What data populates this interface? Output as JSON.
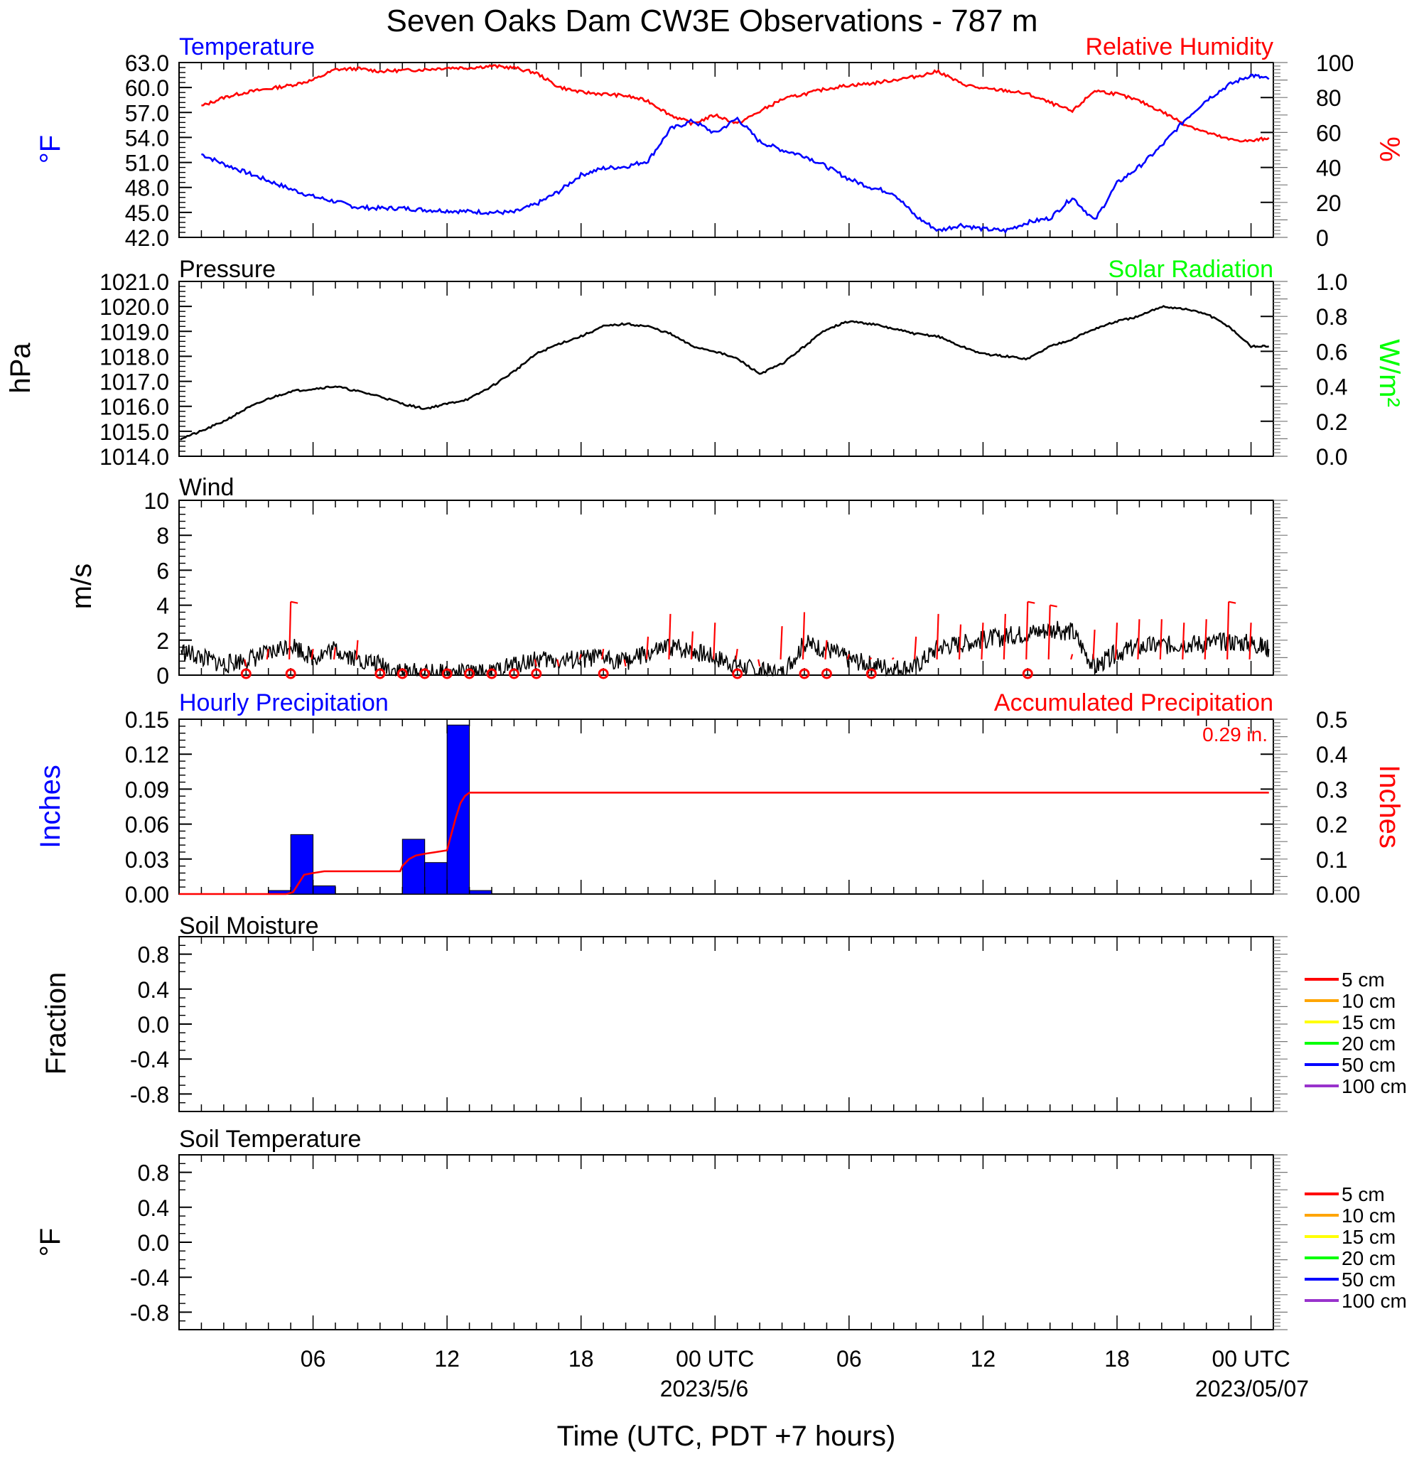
{
  "figure": {
    "title": "Seven Oaks Dam CW3E Observations - 787 m",
    "x_axis_label": "Time (UTC, PDT +7 hours)",
    "x_ticks": [
      "06",
      "12",
      "18",
      "00 UTC",
      "06",
      "12",
      "18",
      "00 UTC"
    ],
    "x_dates": [
      "2023/5/6",
      "2023/05/07"
    ]
  },
  "colors": {
    "temperature": "#0000ff",
    "humidity": "#ff0000",
    "pressure": "#000000",
    "solar": "#00ff00",
    "wind": "#000000",
    "wind_barbs": "#ff0000",
    "hourly_precip": "#0000ff",
    "accum_precip": "#ff0000",
    "soil_depths": [
      "#ff0000",
      "#ffa500",
      "#ffff00",
      "#00ff00",
      "#0000ff",
      "#9933cc"
    ]
  },
  "chart_data": [
    {
      "type": "line",
      "left_title": "Temperature",
      "right_title": "Relative Humidity",
      "ylabel_left": "°F",
      "ylabel_right": "%",
      "ylim_left": [
        42.0,
        63.0
      ],
      "ylim_right": [
        0,
        100
      ],
      "yticks_left": [
        "42.0",
        "45.0",
        "48.0",
        "51.0",
        "54.0",
        "57.0",
        "60.0",
        "63.0"
      ],
      "yticks_right": [
        "0",
        "20",
        "40",
        "60",
        "80",
        "100"
      ],
      "x_hours": [
        1,
        2,
        3,
        4,
        5,
        6,
        7,
        8,
        9,
        10,
        11,
        12,
        13,
        14,
        15,
        16,
        17,
        18,
        19,
        20,
        21,
        22,
        23,
        24,
        25,
        26,
        27,
        28,
        29,
        30,
        31,
        32,
        33,
        34,
        35,
        36,
        37,
        38,
        39,
        40,
        41,
        42,
        43,
        44,
        45,
        46,
        47,
        48,
        48.8
      ],
      "series": [
        {
          "name": "Temperature",
          "axis": "left",
          "values": [
            52.0,
            50.8,
            49.8,
            48.8,
            47.8,
            46.9,
            46.3,
            45.6,
            45.5,
            45.5,
            45.3,
            45.2,
            45.1,
            45.0,
            45.0,
            46.0,
            47.5,
            49.5,
            50.3,
            50.5,
            51.2,
            55.0,
            56.0,
            54.5,
            56.3,
            53.5,
            52.5,
            51.8,
            50.5,
            49.0,
            48.0,
            47.3,
            44.5,
            42.8,
            43.5,
            43.0,
            42.8,
            43.8,
            44.3,
            46.8,
            44.0,
            48.5,
            50.5,
            53.0,
            56.0,
            58.5,
            60.3,
            61.5,
            61.0
          ]
        },
        {
          "name": "Relative Humidity",
          "axis": "right",
          "values": [
            75,
            80,
            83,
            85,
            87,
            90,
            96,
            96.5,
            95,
            95.5,
            96,
            97,
            97,
            98,
            97,
            94,
            86,
            83,
            82,
            81,
            78,
            70,
            65,
            70,
            65,
            72,
            79,
            82,
            85,
            87,
            88,
            90,
            92,
            95,
            88,
            85,
            84,
            82,
            77,
            72,
            84,
            82,
            78,
            72,
            65,
            60,
            56,
            55,
            57
          ]
        }
      ]
    },
    {
      "type": "line",
      "left_title": "Pressure",
      "right_title": "Solar Radiation",
      "ylabel_left": "hPa",
      "ylabel_right": "W/m²",
      "ylim_left": [
        1014.0,
        1021.0
      ],
      "ylim_right": [
        0.0,
        1.0
      ],
      "yticks_left": [
        "1014.0",
        "1015.0",
        "1016.0",
        "1017.0",
        "1018.0",
        "1019.0",
        "1020.0",
        "1021.0"
      ],
      "yticks_right": [
        "0.0",
        "0.2",
        "0.4",
        "0.6",
        "0.8",
        "1.0"
      ],
      "x_hours": [
        0.05,
        1,
        2,
        3,
        4,
        5,
        6,
        7,
        8,
        9,
        10,
        11,
        12,
        13,
        14,
        15,
        16,
        17,
        18,
        19,
        20,
        21,
        22,
        23,
        24,
        25,
        26,
        27,
        28,
        29,
        30,
        31,
        32,
        33,
        34,
        35,
        36,
        37,
        38,
        39,
        40,
        41,
        42,
        43,
        44,
        45,
        46,
        47,
        48,
        48.8
      ],
      "series": [
        {
          "name": "Pressure",
          "axis": "left",
          "values": [
            1014.7,
            1015.0,
            1015.4,
            1015.9,
            1016.3,
            1016.6,
            1016.7,
            1016.8,
            1016.6,
            1016.4,
            1016.1,
            1015.9,
            1016.1,
            1016.3,
            1016.8,
            1017.4,
            1018.1,
            1018.5,
            1018.8,
            1019.2,
            1019.3,
            1019.2,
            1018.9,
            1018.4,
            1018.2,
            1017.9,
            1017.3,
            1017.7,
            1018.4,
            1019.1,
            1019.4,
            1019.3,
            1019.1,
            1018.9,
            1018.8,
            1018.4,
            1018.1,
            1018.0,
            1017.9,
            1018.4,
            1018.7,
            1019.1,
            1019.4,
            1019.6,
            1020.0,
            1019.9,
            1019.7,
            1019.2,
            1018.4,
            1018.4
          ]
        },
        {
          "name": "Solar Radiation",
          "axis": "right",
          "values": []
        }
      ]
    },
    {
      "type": "line",
      "left_title": "Wind",
      "ylabel_left": "m/s",
      "ylim_left": [
        0,
        10
      ],
      "yticks_left": [
        "0",
        "2",
        "4",
        "6",
        "8",
        "10"
      ],
      "x_hours": [
        0.1,
        1,
        2,
        3,
        4,
        5,
        6,
        7,
        8,
        9,
        10,
        11,
        12,
        13,
        14,
        15,
        16,
        17,
        18,
        19,
        20,
        21,
        22,
        23,
        24,
        25,
        26,
        27,
        28,
        29,
        30,
        31,
        32,
        33,
        34,
        35,
        36,
        37,
        38,
        39,
        40,
        41,
        42,
        43,
        44,
        45,
        46,
        47,
        48,
        48.8
      ],
      "series": [
        {
          "name": "Wind",
          "values": [
            1.4,
            1.0,
            0.6,
            0.9,
            1.2,
            1.8,
            1.0,
            1.5,
            0.9,
            0.6,
            0.2,
            0.1,
            0.1,
            0.1,
            0.1,
            0.6,
            0.9,
            0.8,
            0.9,
            1.0,
            0.8,
            1.2,
            1.6,
            1.4,
            1.0,
            0.6,
            0.2,
            0.1,
            1.8,
            1.5,
            0.9,
            0.6,
            0.4,
            0.5,
            1.6,
            1.8,
            2.0,
            2.2,
            2.4,
            2.6,
            2.5,
            0.4,
            1.3,
            1.6,
            1.7,
            1.8,
            1.8,
            1.9,
            1.8,
            1.5
          ]
        }
      ],
      "barb_hours": [
        3,
        4,
        5,
        6,
        7,
        8,
        10,
        11,
        12,
        13,
        14,
        15,
        16,
        17,
        18,
        19,
        20,
        21,
        22,
        23,
        24,
        25,
        26,
        27,
        28,
        29,
        30,
        31,
        32,
        33,
        34,
        35,
        36,
        37,
        38,
        39,
        40,
        41,
        42,
        43,
        44,
        45,
        46,
        47,
        48
      ],
      "barb_speeds": [
        0.5,
        1.5,
        4.2,
        1.5,
        1.6,
        2.0,
        0,
        0,
        0,
        0,
        0,
        0,
        0.5,
        0.5,
        1.2,
        1.5,
        0.5,
        2.2,
        3.5,
        2.5,
        3.0,
        1.5,
        0.5,
        2.8,
        3.6,
        2.0,
        1.2,
        1.0,
        1.0,
        2.2,
        3.5,
        2.9,
        3.0,
        3.5,
        4.2,
        4.0,
        1.2,
        2.6,
        3.0,
        3.2,
        3.2,
        3.0,
        3.2,
        4.2,
        3.0
      ],
      "calm_hours": [
        3,
        5,
        9,
        10,
        11,
        12,
        13,
        14,
        15,
        16,
        19,
        25,
        28,
        29,
        31,
        38
      ]
    },
    {
      "type": "bar",
      "left_title": "Hourly Precipitation",
      "right_title": "Accumulated Precipitation",
      "annotation": "0.29 in.",
      "ylabel_left": "Inches",
      "ylabel_right": "Inches",
      "ylim_left": [
        0.0,
        0.15
      ],
      "ylim_right": [
        0.0,
        0.5
      ],
      "yticks_left": [
        "0.00",
        "0.03",
        "0.06",
        "0.09",
        "0.12",
        "0.15"
      ],
      "yticks_right": [
        "0.00",
        "0.1",
        "0.2",
        "0.3",
        "0.4",
        "0.5"
      ],
      "bar_hours": [
        4,
        5,
        6,
        10,
        11,
        12,
        13
      ],
      "values": [
        0.003,
        0.051,
        0.007,
        0.047,
        0.027,
        0.145,
        0.003
      ],
      "accumulated": {
        "x_hours": [
          0,
          4.8,
          5.1,
          5.3,
          5.6,
          6.0,
          6.5,
          7.0,
          9.9,
          10.0,
          10.3,
          10.6,
          11.0,
          11.5,
          12.0,
          12.1,
          12.4,
          12.6,
          12.8,
          13.0,
          48.8
        ],
        "values": [
          0.0,
          0.0,
          0.005,
          0.025,
          0.055,
          0.06,
          0.065,
          0.065,
          0.065,
          0.08,
          0.1,
          0.11,
          0.115,
          0.12,
          0.125,
          0.15,
          0.22,
          0.26,
          0.28,
          0.29,
          0.29
        ]
      }
    },
    {
      "type": "line",
      "left_title": "Soil Moisture",
      "ylabel_left": "Fraction",
      "ylim_left": [
        -1.0,
        1.0
      ],
      "yticks_left": [
        "-0.8",
        "-0.4",
        "0.0",
        "0.4",
        "0.8"
      ],
      "series": [
        {
          "name": "5 cm",
          "values": []
        },
        {
          "name": "10 cm",
          "values": []
        },
        {
          "name": "15 cm",
          "values": []
        },
        {
          "name": "20 cm",
          "values": []
        },
        {
          "name": "50 cm",
          "values": []
        },
        {
          "name": "100 cm",
          "values": []
        }
      ]
    },
    {
      "type": "line",
      "left_title": "Soil Temperature",
      "ylabel_left": "°F",
      "ylim_left": [
        -1.0,
        1.0
      ],
      "yticks_left": [
        "-0.8",
        "-0.4",
        "0.0",
        "0.4",
        "0.8"
      ],
      "series": [
        {
          "name": "5 cm",
          "values": []
        },
        {
          "name": "10 cm",
          "values": []
        },
        {
          "name": "15 cm",
          "values": []
        },
        {
          "name": "20 cm",
          "values": []
        },
        {
          "name": "50 cm",
          "values": []
        },
        {
          "name": "100 cm",
          "values": []
        }
      ]
    }
  ]
}
